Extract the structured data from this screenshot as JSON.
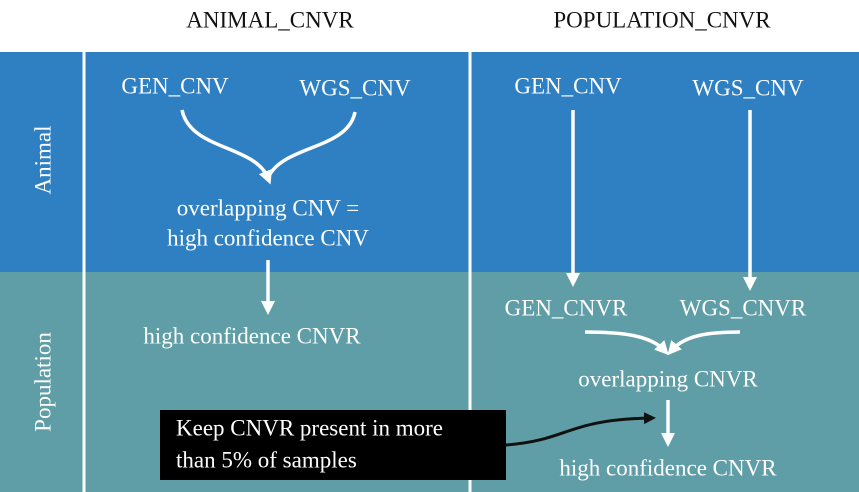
{
  "columns": [
    "ANIMAL_CNVR",
    "POPULATION_CNVR"
  ],
  "rows": [
    "Animal",
    "Population"
  ],
  "nodes": [
    {
      "label": "GEN_CNV"
    },
    {
      "label": "WGS_CNV"
    },
    {
      "label": "overlapping CNV ="
    },
    {
      "label": "high confidence CNV"
    },
    {
      "label": "high confidence CNVR"
    },
    {
      "label": "GEN_CNV"
    },
    {
      "label": "WGS_CNV"
    },
    {
      "label": "GEN_CNVR"
    },
    {
      "label": "WGS_CNVR"
    },
    {
      "label": "overlapping CNVR"
    },
    {
      "label": "high confidence CNVR"
    }
  ],
  "note": [
    "Keep CNVR present in more",
    "than 5% of samples"
  ]
}
